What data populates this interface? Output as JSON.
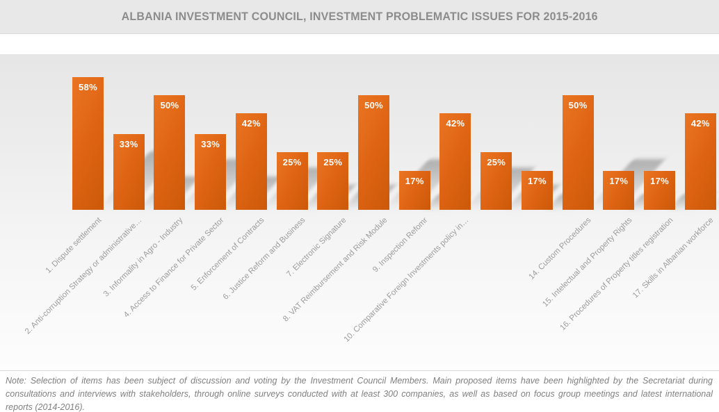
{
  "title": "ALBANIA INVESTMENT COUNCIL, INVESTMENT PROBLEMATIC ISSUES FOR 2015-2016",
  "note": "Note: Selection of items has been subject of discussion and voting by the Investment Council Members. Main proposed items have been highlighted by the Secretariat during consultations and interviews with stakeholders, through online surveys conducted with at least 300 companies, as well as based on focus group meetings and latest international reports (2014-2016).",
  "colors": {
    "bar": "#DE6413",
    "bar_gradient_light": "#EA7522",
    "bar_gradient_dark": "#CB5909",
    "title_text": "#8C8C8C",
    "category_text": "#9C9C9C",
    "note_text": "#808080",
    "title_band_bg": "#E8E8E8",
    "value_label_text": "#FFFFFF"
  },
  "chart_data": {
    "type": "bar",
    "title": "ALBANIA INVESTMENT COUNCIL, INVESTMENT PROBLEMATIC ISSUES FOR 2015-2016",
    "categories": [
      "1. Dispute settlement",
      "2. Anti-corruption Strategy or administrative…",
      "3. Informality in Agro - Industry",
      "4. Access to Finance for Private Sector",
      "5. Enforcement of Contracts",
      "6. Justice Reform and Business",
      "7. Electronic Signature",
      "8. VAT Reimbursement and Risk Module",
      "9. Inspection Refomr",
      "10. Comparative Foreign Investments policy in…",
      "",
      "",
      "14. Custom Procedures",
      "15. Intelectual and Property Rights",
      "16. Procedures of Property titles registration",
      "17. Skills in Albanian workforce"
    ],
    "values": [
      58,
      33,
      50,
      33,
      42,
      25,
      25,
      50,
      17,
      42,
      25,
      17,
      50,
      17,
      17,
      42
    ],
    "value_suffix": "%",
    "data_labels": "inside-end",
    "xlabel": "",
    "ylabel": "",
    "ylim": [
      0,
      60
    ],
    "grid": false,
    "legend": "none",
    "axes_visible": false,
    "category_label_rotation_deg": -45,
    "bar_color": "#DE6413"
  }
}
